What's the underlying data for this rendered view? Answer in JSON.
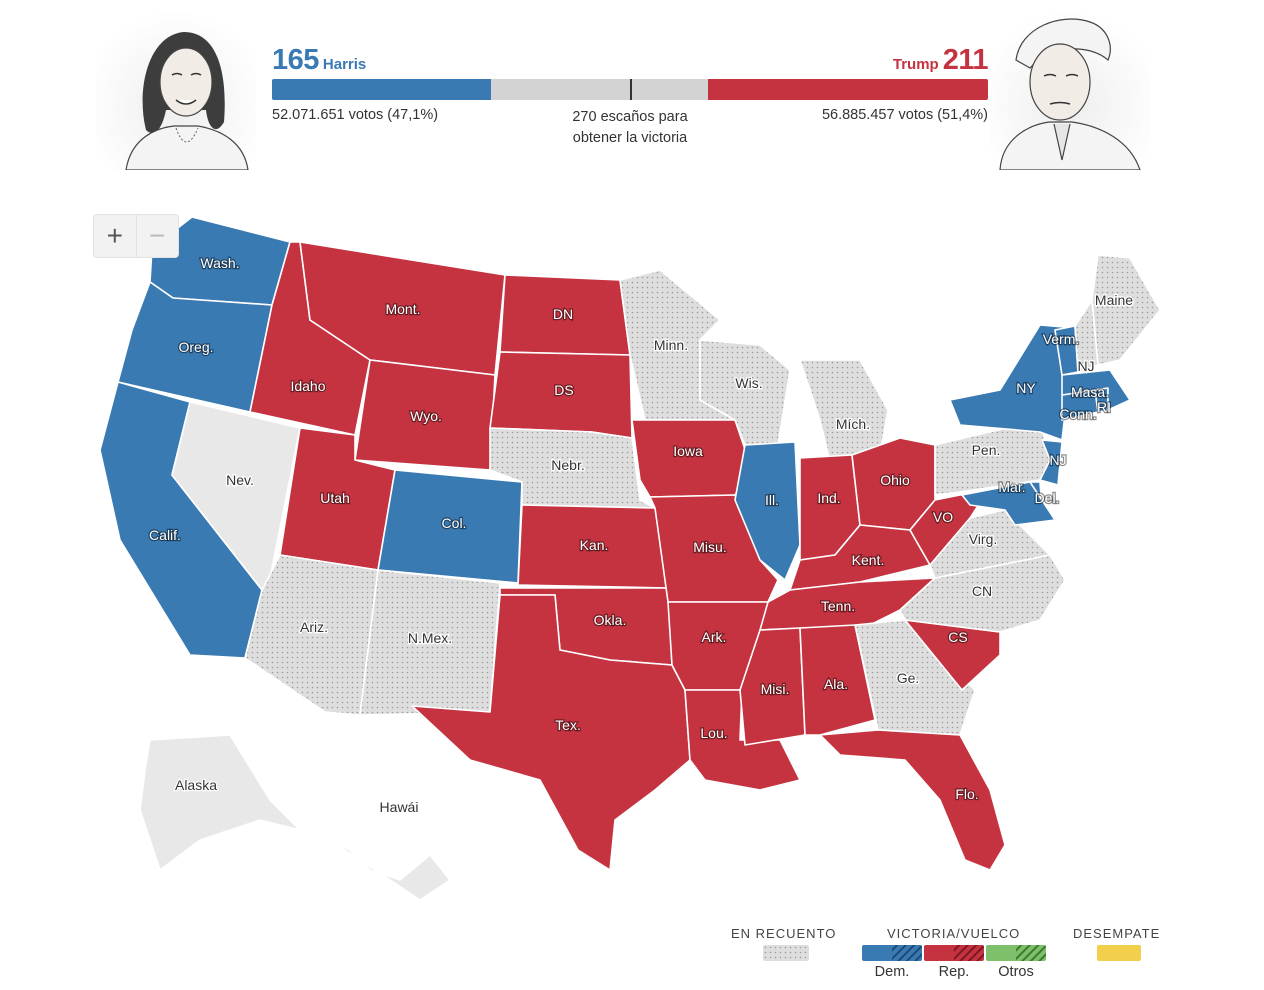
{
  "header": {
    "dem": {
      "name": "Harris",
      "electoral_votes": "165",
      "votes_text": "52.071.651 votos (47,1%)",
      "share": 0.3056
    },
    "rep": {
      "name": "Trump",
      "electoral_votes": "211",
      "votes_text": "56.885.457 votos (51,4%)",
      "share": 0.3907
    },
    "threshold_line1": "270 escaños para",
    "threshold_line2": "obtener la victoria"
  },
  "zoom": {
    "in_label": "+",
    "out_label": "−"
  },
  "colors": {
    "dem": "#3a7ab3",
    "rep": "#c53340",
    "counting": "#dedede",
    "no_results": "#e8e8e8",
    "others": "#7dbf6a",
    "tie": "#f2d04b"
  },
  "states": [
    {
      "id": "WA",
      "label": "Wash.",
      "status": "dem"
    },
    {
      "id": "OR",
      "label": "Oreg.",
      "status": "dem"
    },
    {
      "id": "CA",
      "label": "Calif.",
      "status": "dem"
    },
    {
      "id": "NV",
      "label": "Nev.",
      "status": "none"
    },
    {
      "id": "ID",
      "label": "Idaho",
      "status": "rep"
    },
    {
      "id": "MT",
      "label": "Mont.",
      "status": "rep"
    },
    {
      "id": "WY",
      "label": "Wyo.",
      "status": "rep"
    },
    {
      "id": "UT",
      "label": "Utah",
      "status": "rep"
    },
    {
      "id": "CO",
      "label": "Col.",
      "status": "dem"
    },
    {
      "id": "AZ",
      "label": "Ariz.",
      "status": "counting"
    },
    {
      "id": "NM",
      "label": "N.Mex.",
      "status": "counting"
    },
    {
      "id": "ND",
      "label": "DN",
      "status": "rep"
    },
    {
      "id": "SD",
      "label": "DS",
      "status": "rep"
    },
    {
      "id": "NE",
      "label": "Nebr.",
      "status": "counting"
    },
    {
      "id": "KS",
      "label": "Kan.",
      "status": "rep"
    },
    {
      "id": "OK",
      "label": "Okla.",
      "status": "rep"
    },
    {
      "id": "TX",
      "label": "Tex.",
      "status": "rep"
    },
    {
      "id": "MN",
      "label": "Minn.",
      "status": "counting"
    },
    {
      "id": "IA",
      "label": "Iowa",
      "status": "rep"
    },
    {
      "id": "MO",
      "label": "Misu.",
      "status": "rep"
    },
    {
      "id": "AR",
      "label": "Ark.",
      "status": "rep"
    },
    {
      "id": "LA",
      "label": "Lou.",
      "status": "rep"
    },
    {
      "id": "WI",
      "label": "Wis.",
      "status": "counting"
    },
    {
      "id": "IL",
      "label": "Ill.",
      "status": "dem"
    },
    {
      "id": "MI",
      "label": "Mích.",
      "status": "counting"
    },
    {
      "id": "IN",
      "label": "Ind.",
      "status": "rep"
    },
    {
      "id": "OH",
      "label": "Ohio",
      "status": "rep"
    },
    {
      "id": "KY",
      "label": "Kent.",
      "status": "rep"
    },
    {
      "id": "TN",
      "label": "Tenn.",
      "status": "rep"
    },
    {
      "id": "MS",
      "label": "Misi.",
      "status": "rep"
    },
    {
      "id": "AL",
      "label": "Ala.",
      "status": "rep"
    },
    {
      "id": "GA",
      "label": "Ge.",
      "status": "counting"
    },
    {
      "id": "FL",
      "label": "Flo.",
      "status": "rep"
    },
    {
      "id": "SC",
      "label": "CS",
      "status": "rep"
    },
    {
      "id": "NC",
      "label": "CN",
      "status": "counting"
    },
    {
      "id": "VA",
      "label": "Virg.",
      "status": "counting"
    },
    {
      "id": "WV",
      "label": "VO",
      "status": "rep"
    },
    {
      "id": "PA",
      "label": "Pen.",
      "status": "counting"
    },
    {
      "id": "NY",
      "label": "NY",
      "status": "dem"
    },
    {
      "id": "NJ",
      "label": "NJ",
      "status": "dem"
    },
    {
      "id": "DE",
      "label": "Del.",
      "status": "dem"
    },
    {
      "id": "MD",
      "label": "Mar.",
      "status": "dem"
    },
    {
      "id": "CT",
      "label": "Conn.",
      "status": "dem"
    },
    {
      "id": "RI",
      "label": "RI",
      "status": "dem"
    },
    {
      "id": "MA",
      "label": "Masa.",
      "status": "dem"
    },
    {
      "id": "VT",
      "label": "Verm.",
      "status": "dem"
    },
    {
      "id": "NH",
      "label": "NJ",
      "status": "counting"
    },
    {
      "id": "ME",
      "label": "Maine",
      "status": "counting"
    },
    {
      "id": "AK",
      "label": "Alaska",
      "status": "none"
    },
    {
      "id": "HI",
      "label": "Hawái",
      "status": "none"
    }
  ],
  "legend": {
    "counting": "EN RECUENTO",
    "win": "VICTORIA/VUELCO",
    "tie": "DESEMPATE",
    "dem": "Dem.",
    "rep": "Rep.",
    "others": "Otros"
  }
}
